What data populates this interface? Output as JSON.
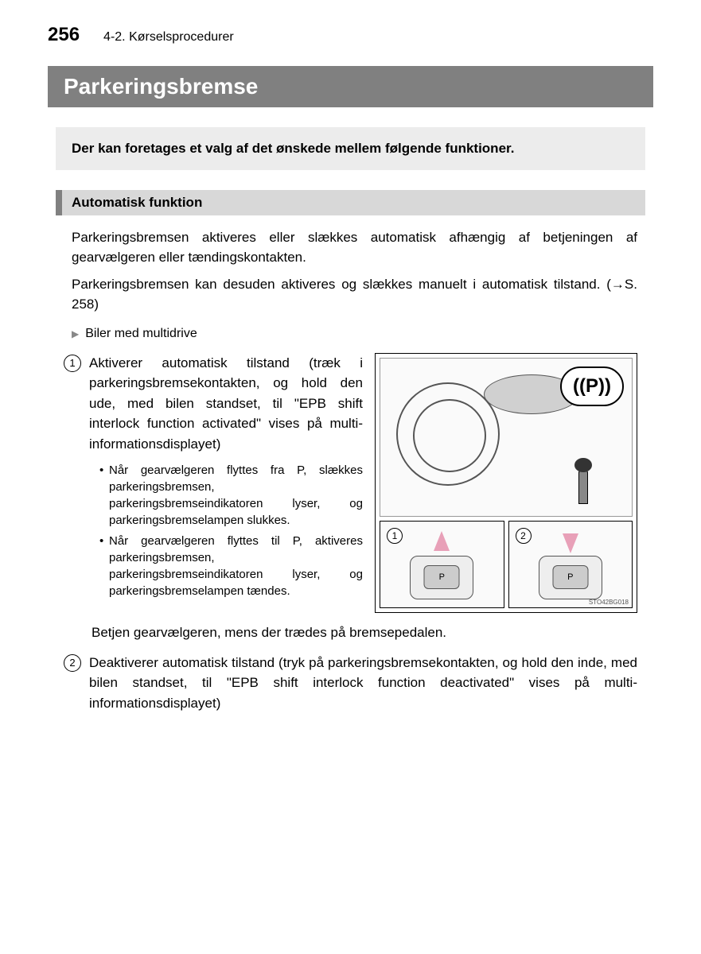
{
  "header": {
    "page_number": "256",
    "section_ref": "4-2. Kørselsprocedurer"
  },
  "title": "Parkeringsbremse",
  "intro": "Der kan foretages et valg af det ønskede mellem følgende funktioner.",
  "section1": {
    "header": "Automatisk funktion",
    "para1": "Parkeringsbremsen aktiveres eller slækkes automatisk afhængig af betjeningen af gearvælgeren eller tændingskontakten.",
    "para2": "Parkeringsbremsen kan desuden aktiveres og slækkes manuelt i automatisk tilstand. (→S. 258)",
    "subheader": "Biler med multidrive",
    "item1": {
      "num": "1",
      "text": "Aktiverer automatisk tilstand (træk i parkeringsbremsekontakten, og hold den ude, med bilen standset, til \"EPB shift interlock function activated\" vises på multi-informationsdisplayet)",
      "bullets": [
        "Når gearvælgeren flyttes fra P, slækkes parkeringsbremsen, parkeringsbremseindikatoren lyser, og parkeringsbremselampen slukkes.",
        "Når gearvælgeren flyttes til P, aktiveres parkeringsbremsen, parkeringsbremseindikatoren lyser, og parkeringsbremselampen tændes."
      ]
    },
    "mid_note": "Betjen gearvælgeren, mens der trædes på bremsepedalen.",
    "item2": {
      "num": "2",
      "text": "Deaktiverer automatisk tilstand (tryk på parkeringsbremsekontakten, og hold den inde, med bilen standset, til \"EPB shift interlock function deactivated\" vises på multi-informationsdisplayet)"
    }
  },
  "diagram": {
    "p_label": "((P))",
    "sub1_num": "1",
    "sub2_num": "2",
    "brake_label": "P",
    "id": "STO42BG018",
    "colors": {
      "arrow": "#e8a0b8",
      "border": "#000000",
      "bg": "#fafafa"
    }
  }
}
